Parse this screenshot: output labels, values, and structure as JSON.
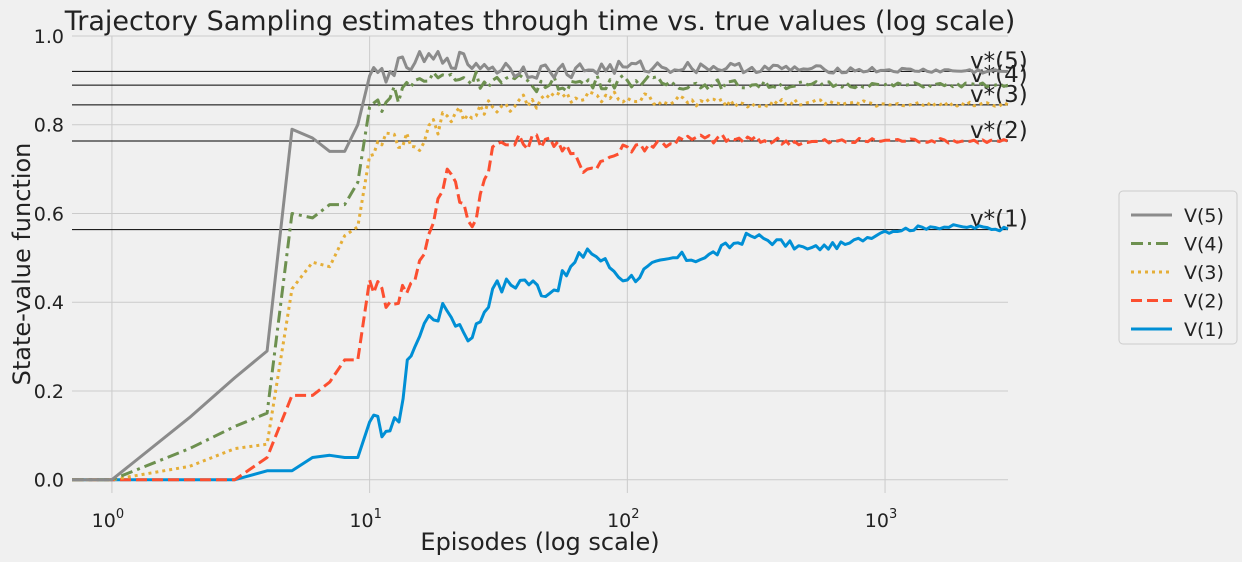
{
  "chart_data": {
    "type": "line",
    "title": "Trajectory Sampling estimates through time vs. true values (log scale)",
    "xlabel": "Episodes (log scale)",
    "ylabel": "State-value function",
    "xscale": "log",
    "xlim": [
      0.7,
      3000
    ],
    "ylim": [
      -0.03,
      1.0
    ],
    "xticks": [
      {
        "value": 1,
        "base": "10",
        "exp": "0"
      },
      {
        "value": 10,
        "base": "10",
        "exp": "1"
      },
      {
        "value": 100,
        "base": "10",
        "exp": "2"
      },
      {
        "value": 1000,
        "base": "10",
        "exp": "3"
      }
    ],
    "yticks": [
      {
        "value": 0.0,
        "label": "0.0"
      },
      {
        "value": 0.2,
        "label": "0.2"
      },
      {
        "value": 0.4,
        "label": "0.4"
      },
      {
        "value": 0.6,
        "label": "0.6"
      },
      {
        "value": 0.8,
        "label": "0.8"
      },
      {
        "value": 1.0,
        "label": "1.0"
      }
    ],
    "grid": true,
    "legend_position": "right",
    "true_values": [
      {
        "label": "v*(1)",
        "value": 0.5637
      },
      {
        "label": "v*(2)",
        "value": 0.7634
      },
      {
        "label": "v*(3)",
        "value": 0.8448
      },
      {
        "label": "v*(4)",
        "value": 0.8892
      },
      {
        "label": "v*(5)",
        "value": 0.9204
      }
    ],
    "series": [
      {
        "name": "V(5)",
        "color": "#8b8b8b",
        "dash": "solid",
        "points": [
          [
            0.7,
            0
          ],
          [
            1,
            0
          ],
          [
            2,
            0.14
          ],
          [
            3,
            0.23
          ],
          [
            4,
            0.29
          ],
          [
            5,
            0.79
          ],
          [
            6,
            0.77
          ],
          [
            7,
            0.74
          ],
          [
            8,
            0.74
          ],
          [
            9,
            0.8
          ],
          [
            10,
            0.91
          ],
          [
            12,
            0.92
          ],
          [
            15,
            0.94
          ],
          [
            20,
            0.95
          ],
          [
            30,
            0.93
          ],
          [
            50,
            0.92
          ],
          [
            100,
            0.93
          ],
          [
            200,
            0.93
          ],
          [
            500,
            0.925
          ],
          [
            1000,
            0.923
          ],
          [
            3000,
            0.92
          ]
        ]
      },
      {
        "name": "V(4)",
        "color": "#6d904f",
        "dash": "dashdot",
        "points": [
          [
            0.7,
            0
          ],
          [
            1,
            0
          ],
          [
            2,
            0.07
          ],
          [
            3,
            0.12
          ],
          [
            4,
            0.15
          ],
          [
            5,
            0.6
          ],
          [
            6,
            0.59
          ],
          [
            7,
            0.62
          ],
          [
            8,
            0.62
          ],
          [
            9,
            0.67
          ],
          [
            10,
            0.84
          ],
          [
            12,
            0.86
          ],
          [
            15,
            0.9
          ],
          [
            20,
            0.91
          ],
          [
            30,
            0.9
          ],
          [
            50,
            0.89
          ],
          [
            100,
            0.9
          ],
          [
            200,
            0.89
          ],
          [
            500,
            0.89
          ],
          [
            1000,
            0.89
          ],
          [
            3000,
            0.889
          ]
        ]
      },
      {
        "name": "V(3)",
        "color": "#e5ae38",
        "dash": "dotted",
        "points": [
          [
            0.7,
            0
          ],
          [
            1,
            0
          ],
          [
            2,
            0.03
          ],
          [
            3,
            0.07
          ],
          [
            4,
            0.08
          ],
          [
            5,
            0.43
          ],
          [
            6,
            0.49
          ],
          [
            7,
            0.48
          ],
          [
            8,
            0.55
          ],
          [
            9,
            0.57
          ],
          [
            10,
            0.73
          ],
          [
            12,
            0.78
          ],
          [
            15,
            0.75
          ],
          [
            20,
            0.82
          ],
          [
            30,
            0.84
          ],
          [
            50,
            0.86
          ],
          [
            100,
            0.86
          ],
          [
            200,
            0.85
          ],
          [
            500,
            0.85
          ],
          [
            1000,
            0.847
          ],
          [
            3000,
            0.845
          ]
        ]
      },
      {
        "name": "V(2)",
        "color": "#fc4f30",
        "dash": "dashed",
        "points": [
          [
            0.7,
            0
          ],
          [
            1,
            0
          ],
          [
            2,
            0
          ],
          [
            3,
            0
          ],
          [
            4,
            0.05
          ],
          [
            5,
            0.19
          ],
          [
            6,
            0.19
          ],
          [
            7,
            0.22
          ],
          [
            8,
            0.27
          ],
          [
            9,
            0.27
          ],
          [
            10,
            0.45
          ],
          [
            12,
            0.4
          ],
          [
            15,
            0.45
          ],
          [
            20,
            0.7
          ],
          [
            25,
            0.57
          ],
          [
            30,
            0.75
          ],
          [
            50,
            0.77
          ],
          [
            70,
            0.7
          ],
          [
            100,
            0.75
          ],
          [
            200,
            0.77
          ],
          [
            500,
            0.76
          ],
          [
            1000,
            0.765
          ],
          [
            3000,
            0.763
          ]
        ]
      },
      {
        "name": "V(1)",
        "color": "#008fd5",
        "dash": "solid",
        "points": [
          [
            0.7,
            0
          ],
          [
            1,
            0
          ],
          [
            2,
            0
          ],
          [
            3,
            0
          ],
          [
            4,
            0.02
          ],
          [
            5,
            0.02
          ],
          [
            6,
            0.05
          ],
          [
            7,
            0.055
          ],
          [
            8,
            0.05
          ],
          [
            9,
            0.05
          ],
          [
            10,
            0.13
          ],
          [
            12,
            0.11
          ],
          [
            13,
            0.13
          ],
          [
            14,
            0.27
          ],
          [
            15,
            0.3
          ],
          [
            17,
            0.37
          ],
          [
            20,
            0.38
          ],
          [
            25,
            0.32
          ],
          [
            30,
            0.43
          ],
          [
            40,
            0.45
          ],
          [
            50,
            0.42
          ],
          [
            70,
            0.52
          ],
          [
            100,
            0.45
          ],
          [
            150,
            0.5
          ],
          [
            200,
            0.5
          ],
          [
            300,
            0.55
          ],
          [
            500,
            0.52
          ],
          [
            700,
            0.53
          ],
          [
            1000,
            0.56
          ],
          [
            1500,
            0.57
          ],
          [
            2000,
            0.57
          ],
          [
            3000,
            0.565
          ]
        ]
      }
    ]
  }
}
